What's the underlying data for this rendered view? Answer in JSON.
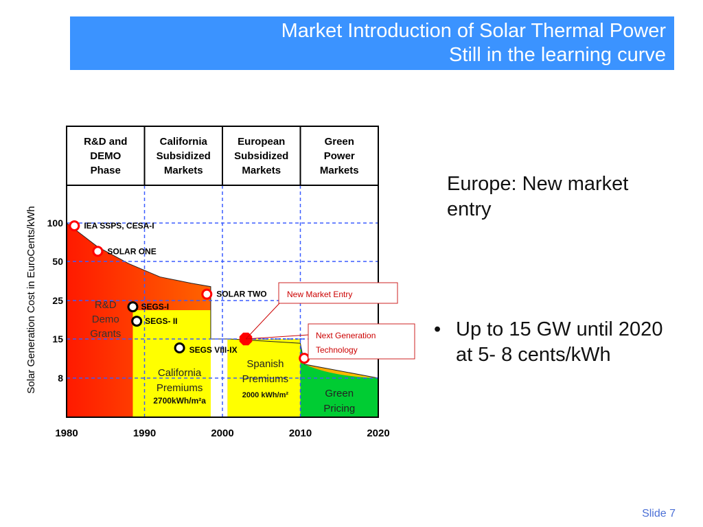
{
  "slide": {
    "title_line1": "Market Introduction of Solar Thermal Power",
    "title_line2": "Still in the learning curve",
    "side_text": "Europe: New market entry",
    "bullets": [
      "Up to  15 GW until 2020 at  5- 8 cents/kWh"
    ],
    "slide_number": "Slide 7",
    "accent_color": "#3b93ff"
  },
  "chart_data": {
    "type": "area",
    "ylabel": "Solar Generation Cost in EuroCents/kWh",
    "xlabel": "",
    "xlim": [
      1980,
      2020
    ],
    "x_ticks": [
      "1980",
      "1990",
      "2000",
      "2010",
      "2020"
    ],
    "y_ticks": [
      "100",
      "50",
      "25",
      "15",
      "8"
    ],
    "phases": [
      {
        "label": "R&D and DEMO Phase",
        "lines": [
          "R&D and",
          "DEMO",
          "Phase"
        ],
        "x_start": 1980,
        "x_end": 1990
      },
      {
        "label": "California Subsidized Markets",
        "lines": [
          "California",
          "Subsidized",
          "Markets"
        ],
        "x_start": 1990,
        "x_end": 2000
      },
      {
        "label": "European Subsidized Markets",
        "lines": [
          "European",
          "Subsidized",
          "Markets"
        ],
        "x_start": 2000,
        "x_end": 2010
      },
      {
        "label": "Green Power Markets",
        "lines": [
          "Green",
          "Power",
          "Markets"
        ],
        "x_start": 2010,
        "x_end": 2020
      }
    ],
    "cost_curve": [
      {
        "x": 1980,
        "y": 100
      },
      {
        "x": 1984,
        "y": 65
      },
      {
        "x": 1988,
        "y": 48
      },
      {
        "x": 1992,
        "y": 38
      },
      {
        "x": 1996,
        "y": 34
      },
      {
        "x": 1998.5,
        "y": 32
      },
      {
        "x": 1998.5,
        "y": 15
      },
      {
        "x": 2001,
        "y": 15
      },
      {
        "x": 2010,
        "y": 14
      },
      {
        "x": 2010.5,
        "y": 10
      },
      {
        "x": 2020,
        "y": 8
      }
    ],
    "regions": [
      {
        "name": "R&D Demo Grants",
        "lines": [
          "R&D",
          "Demo",
          "Grants"
        ],
        "x_start": 1980,
        "x_end": 1988.5,
        "fill": "red-yellow gradient"
      },
      {
        "name": "California Premiums",
        "lines": [
          "California",
          "Premiums"
        ],
        "sub": "2700kWh/m²a",
        "x_start": 1988.5,
        "x_end": 1999,
        "fill": "#ffff00"
      },
      {
        "name": "Spanish Premiums",
        "lines": [
          "Spanish",
          "Premiums"
        ],
        "sub": "2000 kWh/m²",
        "x_start": 2001,
        "x_end": 2010,
        "fill": "#ffff00"
      },
      {
        "name": "Green Pricing",
        "lines": [
          "Green",
          "Pricing"
        ],
        "x_start": 2010,
        "x_end": 2020,
        "fill": "#00cc33"
      }
    ],
    "plants": [
      {
        "name": "IEA SSPS,  CESA-I",
        "x": 1981,
        "y": 95,
        "color": "red"
      },
      {
        "name": "SOLAR ONE",
        "x": 1984,
        "y": 60,
        "color": "red"
      },
      {
        "name": "SOLAR TWO",
        "x": 1998,
        "y": 28,
        "color": "red"
      },
      {
        "name": "SEGS-I",
        "x": 1988.5,
        "y": 23,
        "color": "black"
      },
      {
        "name": "SEGS- II",
        "x": 1989,
        "y": 19,
        "color": "black"
      },
      {
        "name": "SEGS VIII-IX",
        "x": 1994.5,
        "y": 13,
        "color": "black"
      },
      {
        "name": "",
        "x": 2010.5,
        "y": 11,
        "color": "red"
      }
    ],
    "new_entry_point": {
      "x": 2003,
      "y": 15
    },
    "callouts": [
      "New Market Entry",
      "Next Generation Technology"
    ],
    "colors": {
      "red": "#ff0000",
      "yellow": "#ffff00",
      "green": "#00cc33",
      "grid": "#3a5cff"
    }
  }
}
